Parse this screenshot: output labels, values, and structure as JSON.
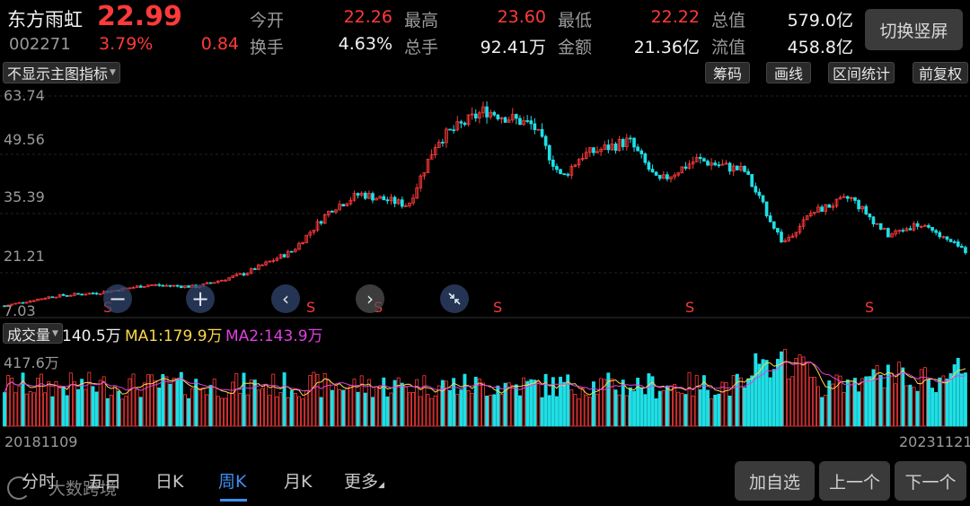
{
  "stock": {
    "name": "东方雨虹",
    "price": "22.99",
    "code": "002271",
    "change_pct": "3.79%",
    "change": "0.84"
  },
  "quote": {
    "open_label": "今开",
    "open": "22.26",
    "high_label": "最高",
    "high": "23.60",
    "low_label": "最低",
    "low": "22.22",
    "mcap_label": "总值",
    "mcap": "579.0亿",
    "turnover_label": "换手",
    "turnover": "4.63%",
    "volume_label": "总手",
    "volume": "92.41万",
    "amount_label": "金额",
    "amount": "21.36亿",
    "float_label": "流值",
    "float": "458.8亿"
  },
  "switch_button": "切换竖屏",
  "toolbar": {
    "indicator_dropdown": "不显示主图指标",
    "chips": "筹码",
    "draw": "画线",
    "range": "区间统计",
    "adjust": "前复权"
  },
  "price_axis": [
    "63.74",
    "49.56",
    "35.39",
    "21.21",
    "7.03"
  ],
  "signal_label": "S",
  "volume": {
    "dropdown": "成交量",
    "current": "140.5万",
    "ma1": "MA1:179.9万",
    "ma2": "MA2:143.9万",
    "axis_max": "417.6万"
  },
  "dates": {
    "start": "20181109",
    "end": "20231121"
  },
  "tabs": [
    "分时",
    "五日",
    "日K",
    "周K",
    "月K",
    "更多"
  ],
  "active_tab": "周K",
  "buttons": {
    "add": "加自选",
    "prev": "上一个",
    "next": "下一个"
  },
  "watermark": "大数跨境",
  "colors": {
    "up": "#ff3a3a",
    "down": "#1fdfe6",
    "ma1": "#ffd84a",
    "ma2": "#e040e0",
    "accent": "#3e8ef0"
  },
  "chart_data": {
    "type": "candlestick",
    "period": "weekly",
    "ylim": [
      7.03,
      63.74
    ],
    "x_range": [
      "20181109",
      "20231121"
    ],
    "close_trend": [
      {
        "t": 0,
        "close": 8.5
      },
      {
        "t": 0.05,
        "close": 11
      },
      {
        "t": 0.1,
        "close": 12
      },
      {
        "t": 0.15,
        "close": 14
      },
      {
        "t": 0.2,
        "close": 13.5
      },
      {
        "t": 0.25,
        "close": 17
      },
      {
        "t": 0.3,
        "close": 23
      },
      {
        "t": 0.34,
        "close": 34
      },
      {
        "t": 0.37,
        "close": 38
      },
      {
        "t": 0.42,
        "close": 35
      },
      {
        "t": 0.45,
        "close": 52
      },
      {
        "t": 0.5,
        "close": 60
      },
      {
        "t": 0.55,
        "close": 56
      },
      {
        "t": 0.58,
        "close": 42
      },
      {
        "t": 0.6,
        "close": 48
      },
      {
        "t": 0.65,
        "close": 52
      },
      {
        "t": 0.68,
        "close": 41
      },
      {
        "t": 0.72,
        "close": 47
      },
      {
        "t": 0.77,
        "close": 44
      },
      {
        "t": 0.81,
        "close": 25
      },
      {
        "t": 0.84,
        "close": 33
      },
      {
        "t": 0.88,
        "close": 37
      },
      {
        "t": 0.92,
        "close": 27
      },
      {
        "t": 0.95,
        "close": 30
      },
      {
        "t": 1.0,
        "close": 22.99
      }
    ],
    "signals_at": [
      0.11,
      0.32,
      0.39,
      0.51,
      0.71,
      0.9
    ]
  }
}
